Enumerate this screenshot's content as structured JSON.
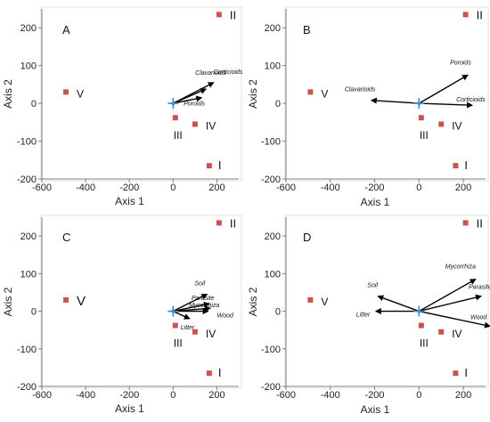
{
  "chart_data": [
    {
      "type": "scatter",
      "panel": "A",
      "xlabel": "Axis 1",
      "ylabel": "Axis 2",
      "xlim": [
        -600,
        300
      ],
      "ylim": [
        -200,
        250
      ],
      "xticks": [
        -600,
        -400,
        -200,
        0,
        200
      ],
      "yticks": [
        -200,
        -100,
        0,
        100,
        200
      ],
      "points": [
        {
          "label": "I",
          "x": 165,
          "y": -165
        },
        {
          "label": "II",
          "x": 210,
          "y": 235
        },
        {
          "label": "III",
          "x": 10,
          "y": -38
        },
        {
          "label": "IV",
          "x": 100,
          "y": -55
        },
        {
          "label": "V",
          "x": -490,
          "y": 30
        }
      ],
      "vectors": [
        {
          "label": "Clavarioids",
          "x": 150,
          "y": 38
        },
        {
          "label": "Corticioids",
          "x": 185,
          "y": 55
        },
        {
          "label": "Poroids",
          "x": 130,
          "y": 15
        }
      ]
    },
    {
      "type": "scatter",
      "panel": "B",
      "xlabel": "Axis 1",
      "ylabel": "Axis 2",
      "xlim": [
        -600,
        300
      ],
      "ylim": [
        -200,
        250
      ],
      "xticks": [
        -600,
        -400,
        -200,
        0,
        200
      ],
      "yticks": [
        -200,
        -100,
        0,
        100,
        200
      ],
      "points": [
        {
          "label": "I",
          "x": 165,
          "y": -165
        },
        {
          "label": "II",
          "x": 210,
          "y": 235
        },
        {
          "label": "III",
          "x": 10,
          "y": -38
        },
        {
          "label": "IV",
          "x": 100,
          "y": -55
        },
        {
          "label": "V",
          "x": -490,
          "y": 30
        }
      ],
      "vectors": [
        {
          "label": "Clavarioids",
          "x": -215,
          "y": 8
        },
        {
          "label": "Poroids",
          "x": 220,
          "y": 75
        },
        {
          "label": "Corticioids",
          "x": 240,
          "y": -5
        }
      ]
    },
    {
      "type": "scatter",
      "panel": "C",
      "xlabel": "Axis 1",
      "ylabel": "Axis 2",
      "xlim": [
        -600,
        300
      ],
      "ylim": [
        -200,
        250
      ],
      "xticks": [
        -600,
        -400,
        -200,
        0,
        200
      ],
      "yticks": [
        -200,
        -100,
        0,
        100,
        200
      ],
      "points": [
        {
          "label": "I",
          "x": 165,
          "y": -165
        },
        {
          "label": "II",
          "x": 210,
          "y": 235
        },
        {
          "label": "III",
          "x": 10,
          "y": -38
        },
        {
          "label": "IV",
          "x": 100,
          "y": -55
        },
        {
          "label": "V",
          "x": -490,
          "y": 30
        }
      ],
      "vectors": [
        {
          "label": "Soil",
          "x": 155,
          "y": 45
        },
        {
          "label": "Parasite",
          "x": 165,
          "y": 20
        },
        {
          "label": "Mycorrhiza",
          "x": 170,
          "y": 8
        },
        {
          "label": "Wood",
          "x": 160,
          "y": 0
        },
        {
          "label": "Litter",
          "x": 75,
          "y": -20
        }
      ]
    },
    {
      "type": "scatter",
      "panel": "D",
      "xlabel": "Axis 1",
      "ylabel": "Axis 2",
      "xlim": [
        -600,
        300
      ],
      "ylim": [
        -200,
        250
      ],
      "xticks": [
        -600,
        -400,
        -200,
        0,
        200
      ],
      "yticks": [
        -200,
        -100,
        0,
        100,
        200
      ],
      "points": [
        {
          "label": "I",
          "x": 165,
          "y": -165
        },
        {
          "label": "II",
          "x": 210,
          "y": 235
        },
        {
          "label": "III",
          "x": 10,
          "y": -38
        },
        {
          "label": "IV",
          "x": 100,
          "y": -55
        },
        {
          "label": "V",
          "x": -490,
          "y": 30
        }
      ],
      "vectors": [
        {
          "label": "Mycorrhiza",
          "x": 255,
          "y": 85
        },
        {
          "label": "Parasite",
          "x": 280,
          "y": 40
        },
        {
          "label": "Wood",
          "x": 320,
          "y": -40
        },
        {
          "label": "Soil",
          "x": -185,
          "y": 40
        },
        {
          "label": "Litter",
          "x": -195,
          "y": 0
        }
      ]
    }
  ],
  "colors": {
    "point": "#c9534f",
    "origin": "#3a8fc4",
    "arrow": "#000000",
    "axis": "#7f7f7f",
    "frame": "#d9d9d9"
  }
}
